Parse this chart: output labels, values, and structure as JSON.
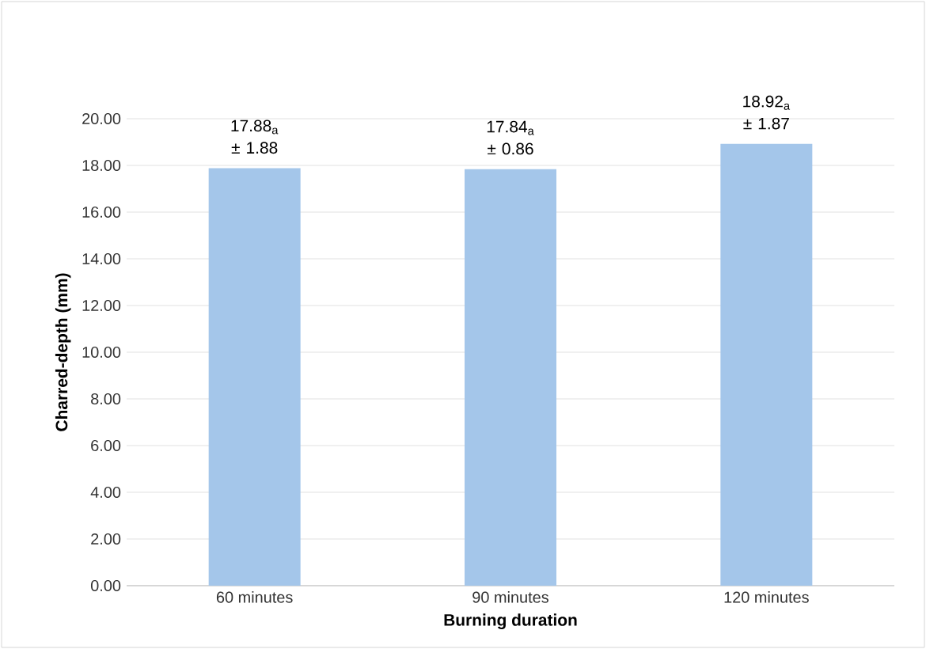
{
  "chart_data": {
    "type": "bar",
    "xlabel": "Burning duration",
    "ylabel": "Charred-depth (mm)",
    "categories": [
      "60 minutes",
      "90 minutes",
      "120 minutes"
    ],
    "values": [
      17.88,
      17.84,
      18.92
    ],
    "value_labels": [
      "17.88$_{a}$ ± 1.88",
      "17.84$_{a}$ ± 0.86",
      "18.92$_{a}$ ± 1.87"
    ],
    "color": "#a4c6ea",
    "ylim": [
      0,
      20
    ],
    "yticks": [
      {
        "value": 0,
        "label": "0.00"
      },
      {
        "value": 2,
        "label": "2.00"
      },
      {
        "value": 4,
        "label": "4.00"
      },
      {
        "value": 6,
        "label": "6.00"
      },
      {
        "value": 8,
        "label": "8.00"
      },
      {
        "value": 10,
        "label": "10.00"
      },
      {
        "value": 12,
        "label": "12.00"
      },
      {
        "value": 14,
        "label": "14.00"
      },
      {
        "value": 16,
        "label": "16.00"
      },
      {
        "value": 18,
        "label": "18.00"
      },
      {
        "value": 20,
        "label": "20.00"
      }
    ],
    "grid": "y"
  }
}
